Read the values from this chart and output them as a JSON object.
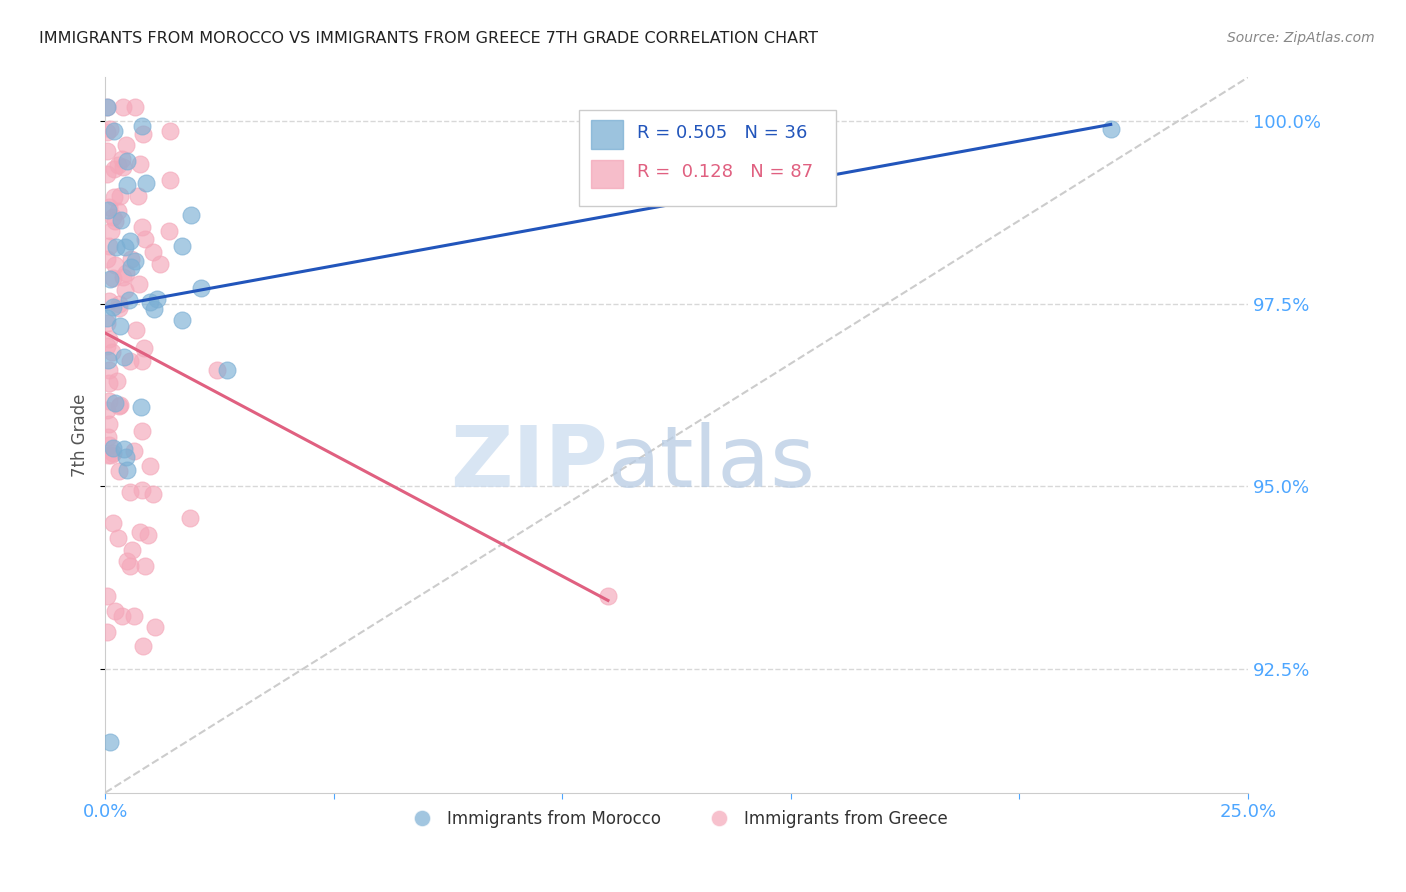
{
  "title": "IMMIGRANTS FROM MOROCCO VS IMMIGRANTS FROM GREECE 7TH GRADE CORRELATION CHART",
  "source": "Source: ZipAtlas.com",
  "ylabel_label": "7th Grade",
  "x_min": 0.0,
  "x_max": 0.25,
  "y_min": 90.8,
  "y_max": 100.6,
  "x_ticks": [
    0.0,
    0.05,
    0.1,
    0.15,
    0.2,
    0.25
  ],
  "x_tick_labels": [
    "0.0%",
    "",
    "",
    "",
    "",
    "25.0%"
  ],
  "y_ticks": [
    92.5,
    95.0,
    97.5,
    100.0
  ],
  "y_tick_labels": [
    "92.5%",
    "95.0%",
    "97.5%",
    "100.0%"
  ],
  "morocco_color": "#7BAFD4",
  "greece_color": "#F4A7B9",
  "morocco_R": 0.505,
  "morocco_N": 36,
  "greece_R": 0.128,
  "greece_N": 87,
  "watermark_zip": "ZIP",
  "watermark_atlas": "atlas",
  "background_color": "#ffffff",
  "grid_color": "#d8d8d8",
  "title_color": "#222222",
  "axis_label_color": "#555555",
  "right_axis_color": "#4da6ff",
  "x_tick_color": "#4da6ff",
  "morocco_trend_color": "#2255BB",
  "greece_trend_color": "#E06080",
  "ref_line_color": "#cccccc",
  "legend_border_color": "#cccccc",
  "source_color": "#888888"
}
